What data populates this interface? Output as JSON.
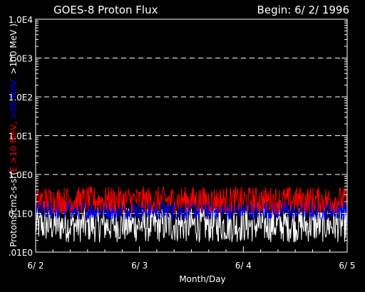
{
  "chart_data": {
    "type": "line",
    "title": "GOES-8 Proton Flux",
    "begin_label": "Begin: 6/ 2/ 1996",
    "xlabel": "Month/Day",
    "ylabel_parts": [
      {
        "text": "Protons/cm2-s-sr(",
        "color": "#ffffff"
      },
      {
        "text": "E >10 MeV,",
        "color": "#ff0000"
      },
      {
        "text": " ",
        "color": "#ffffff"
      },
      {
        "text": ">50 MeV,",
        "color": "#0000ff"
      },
      {
        "text": " >100 MeV )",
        "color": "#ffffff"
      }
    ],
    "y_scale": "log",
    "ylim": [
      0.01,
      10000
    ],
    "y_ticks": [
      {
        "value": 0.01,
        "label": ".01E0"
      },
      {
        "value": 0.1,
        "label": "0.1E0"
      },
      {
        "value": 1,
        "label": "1.0E0"
      },
      {
        "value": 10,
        "label": "1.0E1"
      },
      {
        "value": 100,
        "label": "1.0E2"
      },
      {
        "value": 1000,
        "label": "1.0E3"
      },
      {
        "value": 10000,
        "label": "1.0E4"
      }
    ],
    "x_unit": "days",
    "xlim": [
      0,
      3
    ],
    "x_ticks": [
      {
        "value": 0,
        "label": "6/ 2"
      },
      {
        "value": 1,
        "label": "6/ 3"
      },
      {
        "value": 2,
        "label": "6/ 4"
      },
      {
        "value": 3,
        "label": "6/ 5"
      }
    ],
    "grid": "dashed horizontal at decades",
    "series": [
      {
        "name": "E >10 MeV",
        "color": "#ff0000",
        "base": 0.22,
        "spread": 0.35
      },
      {
        "name": ">50 MeV",
        "color": "#0000ff",
        "base": 0.12,
        "spread": 0.25
      },
      {
        "name": ">100 MeV",
        "color": "#ffffff",
        "base": 0.05,
        "spread": 0.45
      }
    ]
  }
}
